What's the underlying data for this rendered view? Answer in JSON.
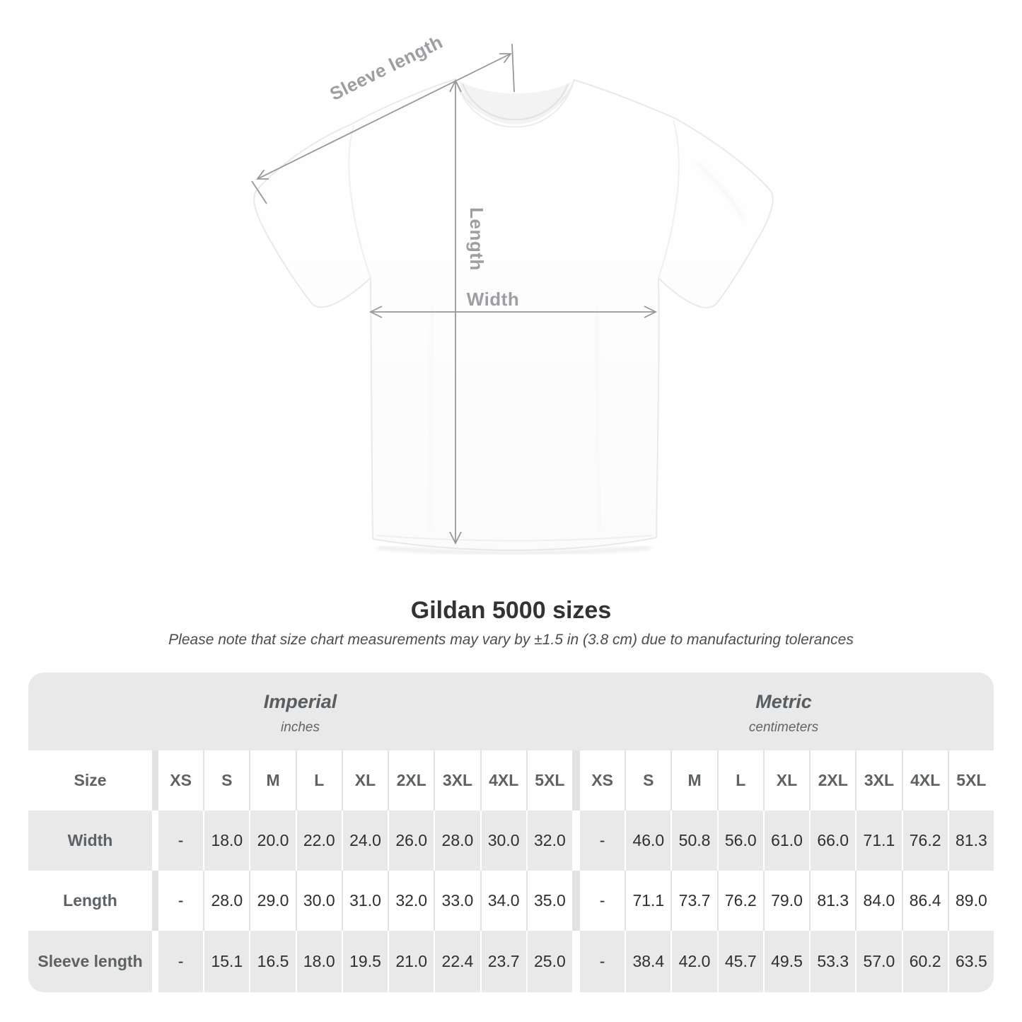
{
  "diagram": {
    "sleeve_label": "Sleeve length",
    "length_label": "Length",
    "width_label": "Width"
  },
  "title": "Gildan 5000 sizes",
  "subtitle": "Please note that size chart measurements may vary by ±1.5 in (3.8 cm) due to manufacturing tolerances",
  "table": {
    "size_label": "Size",
    "groups": [
      {
        "name": "Imperial",
        "unit": "inches"
      },
      {
        "name": "Metric",
        "unit": "centimeters"
      }
    ],
    "sizes": [
      "XS",
      "S",
      "M",
      "L",
      "XL",
      "2XL",
      "3XL",
      "4XL",
      "5XL"
    ],
    "rows": [
      {
        "label": "Width",
        "imperial": [
          "-",
          "18.0",
          "20.0",
          "22.0",
          "24.0",
          "26.0",
          "28.0",
          "30.0",
          "32.0"
        ],
        "metric": [
          "-",
          "46.0",
          "50.8",
          "56.0",
          "61.0",
          "66.0",
          "71.1",
          "76.2",
          "81.3"
        ]
      },
      {
        "label": "Length",
        "imperial": [
          "-",
          "28.0",
          "29.0",
          "30.0",
          "31.0",
          "32.0",
          "33.0",
          "34.0",
          "35.0"
        ],
        "metric": [
          "-",
          "71.1",
          "73.7",
          "76.2",
          "79.0",
          "81.3",
          "84.0",
          "86.4",
          "89.0"
        ]
      },
      {
        "label": "Sleeve length",
        "imperial": [
          "-",
          "15.1",
          "16.5",
          "18.0",
          "19.5",
          "21.0",
          "22.4",
          "23.7",
          "25.0"
        ],
        "metric": [
          "-",
          "38.4",
          "42.0",
          "45.7",
          "49.5",
          "53.3",
          "57.0",
          "60.2",
          "63.5"
        ]
      }
    ]
  },
  "chart_data": {
    "type": "table",
    "title": "Gildan 5000 sizes",
    "column_groups": [
      "Imperial (inches)",
      "Metric (centimeters)"
    ],
    "columns": [
      "XS",
      "S",
      "M",
      "L",
      "XL",
      "2XL",
      "3XL",
      "4XL",
      "5XL"
    ],
    "rows": [
      {
        "label": "Width",
        "imperial": [
          null,
          18.0,
          20.0,
          22.0,
          24.0,
          26.0,
          28.0,
          30.0,
          32.0
        ],
        "metric": [
          null,
          46.0,
          50.8,
          56.0,
          61.0,
          66.0,
          71.1,
          76.2,
          81.3
        ]
      },
      {
        "label": "Length",
        "imperial": [
          null,
          28.0,
          29.0,
          30.0,
          31.0,
          32.0,
          33.0,
          34.0,
          35.0
        ],
        "metric": [
          null,
          71.1,
          73.7,
          76.2,
          79.0,
          81.3,
          84.0,
          86.4,
          89.0
        ]
      },
      {
        "label": "Sleeve length",
        "imperial": [
          null,
          15.1,
          16.5,
          18.0,
          19.5,
          21.0,
          22.4,
          23.7,
          25.0
        ],
        "metric": [
          null,
          38.4,
          42.0,
          45.7,
          49.5,
          53.3,
          57.0,
          60.2,
          63.5
        ]
      }
    ]
  },
  "colors": {
    "table_band_gray": "#e9e9e9",
    "separator_gray": "#e2e2e2",
    "header_text": "#5c6265",
    "value_text": "#2d2f31",
    "arrow_gray": "#96989a",
    "diagram_label_gray": "#9c9ea1"
  }
}
